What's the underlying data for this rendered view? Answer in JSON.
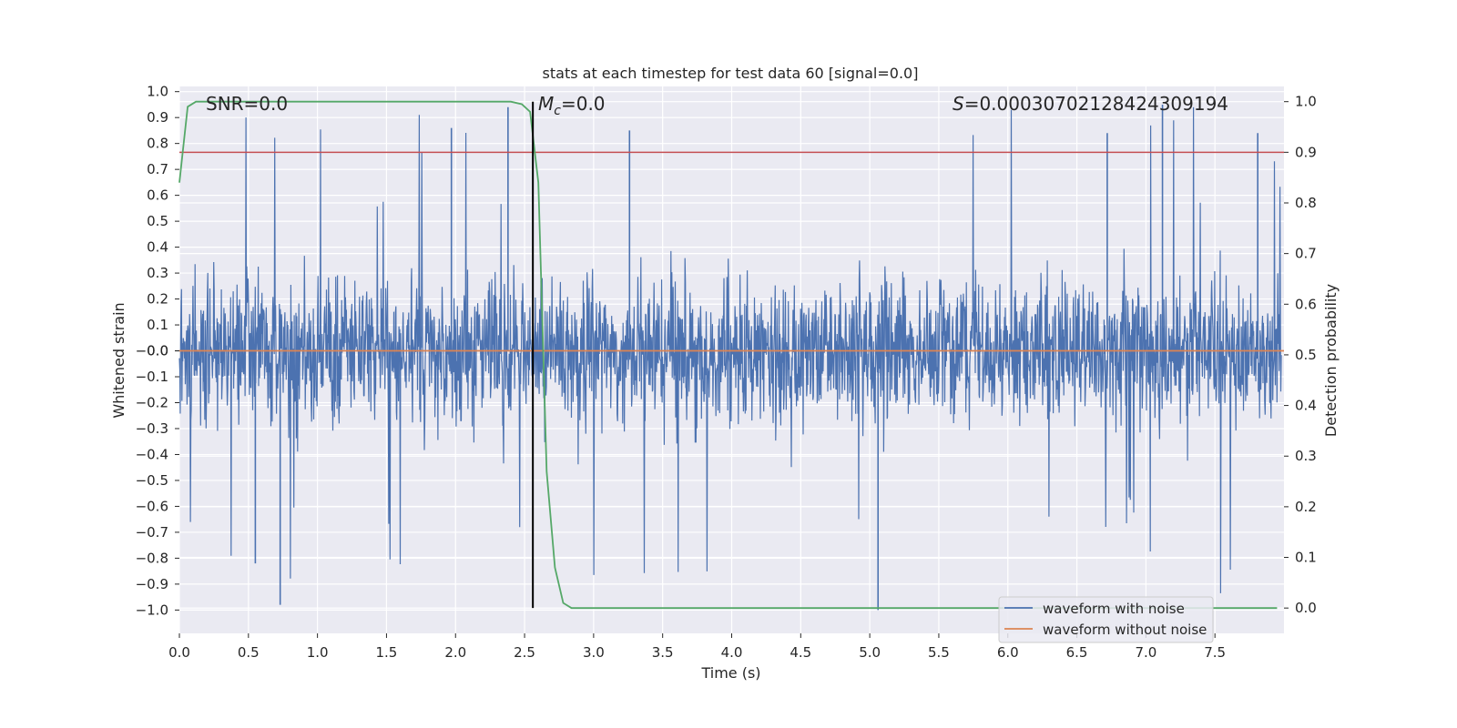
{
  "chart_data": {
    "type": "line",
    "title": "stats at each timestep for test data 60 [signal=0.0]",
    "xlabel": "Time (s)",
    "ylabel": "Whitened strain",
    "y2label": "Detection probability",
    "xlim": [
      0.0,
      8.0
    ],
    "ylim": [
      -1.09,
      1.02
    ],
    "y2lim": [
      -0.05,
      1.03
    ],
    "xticks": [
      "0.0",
      "0.5",
      "1.0",
      "1.5",
      "2.0",
      "2.5",
      "3.0",
      "3.5",
      "4.0",
      "4.5",
      "5.0",
      "5.5",
      "6.0",
      "6.5",
      "7.0",
      "7.5"
    ],
    "yticks": [
      "1.0",
      "0.9",
      "0.8",
      "0.7",
      "0.6",
      "0.5",
      "0.4",
      "0.3",
      "0.2",
      "0.1",
      "0.0",
      "-0.0",
      "-0.1",
      "-0.2",
      "-0.3",
      "-0.4",
      "-0.5",
      "-0.6",
      "-0.7",
      "-0.8",
      "-0.9",
      "-1.0"
    ],
    "y2ticks": [
      "0.0",
      "0.1",
      "0.2",
      "0.3",
      "0.4",
      "0.5",
      "0.6",
      "0.7",
      "0.8",
      "0.9",
      "1.0"
    ],
    "annotations": {
      "snr": "SNR=0.0",
      "mc_sym": "M",
      "mc_sub": "c",
      "mc_val": "=0.0",
      "s_sym": "S",
      "s_val": "=0.00030702128424309194"
    },
    "marker_time": 2.56,
    "threshold_probability": 0.9,
    "series": [
      {
        "name": "waveform with noise",
        "color": "#4c72b0",
        "description": "whitened noisy strain, dense random samples roughly within ±0.5 with spikes to about ±1.0"
      },
      {
        "name": "waveform without noise",
        "color": "#dd8452",
        "values_constant": 0.0
      },
      {
        "name": "detection probability",
        "color": "#55a868",
        "axis": "right",
        "x": [
          0.0,
          0.06,
          0.12,
          0.3,
          0.5,
          1.0,
          1.5,
          2.0,
          2.2,
          2.4,
          2.48,
          2.54,
          2.6,
          2.66,
          2.72,
          2.78,
          2.84,
          2.9,
          3.0,
          4.0,
          5.0,
          6.0,
          7.0,
          7.95
        ],
        "values": [
          0.84,
          0.99,
          1.0,
          1.0,
          1.0,
          1.0,
          1.0,
          1.0,
          1.0,
          1.0,
          0.995,
          0.98,
          0.84,
          0.27,
          0.08,
          0.01,
          0.0,
          0.0,
          0.0,
          0.0,
          0.0,
          0.0,
          0.0,
          0.0
        ]
      },
      {
        "name": "detection threshold",
        "color": "#c44e52",
        "axis": "right",
        "values_constant": 0.9
      }
    ],
    "legend": {
      "position": "lower-right",
      "entries": [
        {
          "label": "waveform with noise",
          "color": "#4c72b0"
        },
        {
          "label": "waveform without noise",
          "color": "#dd8452"
        }
      ]
    }
  }
}
